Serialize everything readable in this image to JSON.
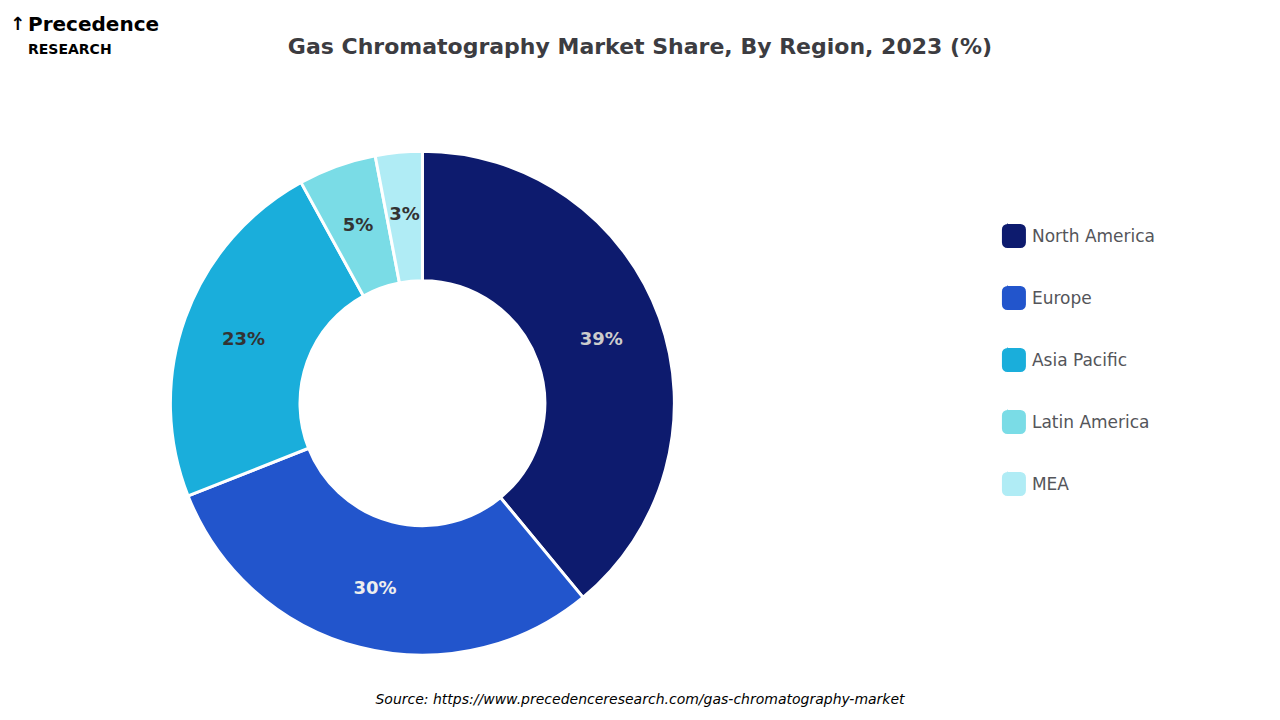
{
  "chart_data": {
    "type": "pie",
    "title": "Gas Chromatography Market Share, By Region, 2023 (%)",
    "categories": [
      "North America",
      "Europe",
      "Asia Pacific",
      "Latin America",
      "MEA"
    ],
    "values": [
      39,
      30,
      23,
      5,
      3
    ],
    "value_labels": [
      "39%",
      "30%",
      "23%",
      "5%",
      "3%"
    ],
    "colors": [
      "#0d1b6e",
      "#2255cc",
      "#1aaedb",
      "#7adce6",
      "#b0ecf5"
    ],
    "data_labels": true,
    "legend": "right",
    "annotations": [
      "↑",
      "Precedence",
      "RESEARCH",
      "Source: https://www.precedenceresearch.com/gas-chromatography-market"
    ]
  }
}
